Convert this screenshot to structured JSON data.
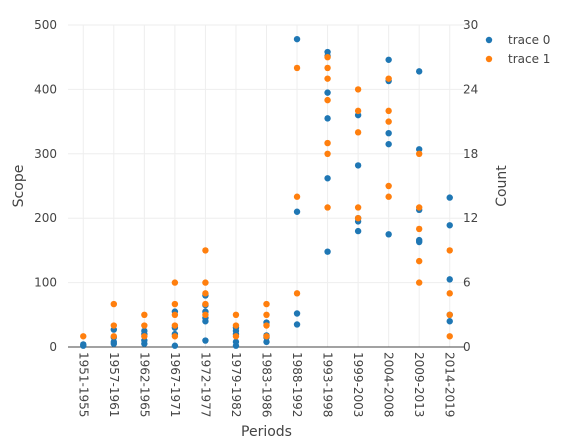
{
  "chart_data": {
    "type": "scatter",
    "title": "",
    "xlabel": "Periods",
    "ylabel": "Scope",
    "y2label": "Count",
    "categories": [
      "1951-1955",
      "1957-1961",
      "1962-1965",
      "1967-1971",
      "1972-1977",
      "1979-1982",
      "1983-1986",
      "1988-1992",
      "1993-1998",
      "1999-2003",
      "2004-2008",
      "2009-2013",
      "2014-2019"
    ],
    "ylim": [
      0,
      500
    ],
    "yticks": [
      0,
      100,
      200,
      300,
      400,
      500
    ],
    "y2lim": [
      0,
      30
    ],
    "y2ticks": [
      0,
      6,
      12,
      18,
      24,
      30
    ],
    "grid": true,
    "legend_position": "top-right",
    "series": [
      {
        "name": "trace 0",
        "axis": "left",
        "color": "#1f77b4",
        "points": [
          [
            "1951-1955",
            2
          ],
          [
            "1951-1955",
            4
          ],
          [
            "1957-1961",
            8
          ],
          [
            "1957-1961",
            15
          ],
          [
            "1957-1961",
            27
          ],
          [
            "1957-1961",
            5
          ],
          [
            "1962-1965",
            5
          ],
          [
            "1962-1965",
            10
          ],
          [
            "1962-1965",
            20
          ],
          [
            "1962-1965",
            25
          ],
          [
            "1967-1971",
            2
          ],
          [
            "1967-1971",
            20
          ],
          [
            "1967-1971",
            30
          ],
          [
            "1967-1971",
            55
          ],
          [
            "1972-1977",
            10
          ],
          [
            "1972-1977",
            40
          ],
          [
            "1972-1977",
            45
          ],
          [
            "1972-1977",
            55
          ],
          [
            "1972-1977",
            65
          ],
          [
            "1972-1977",
            80
          ],
          [
            "1979-1982",
            2
          ],
          [
            "1979-1982",
            8
          ],
          [
            "1979-1982",
            20
          ],
          [
            "1979-1982",
            25
          ],
          [
            "1979-1982",
            30
          ],
          [
            "1983-1986",
            8
          ],
          [
            "1983-1986",
            15
          ],
          [
            "1983-1986",
            18
          ],
          [
            "1983-1986",
            38
          ],
          [
            "1988-1992",
            35
          ],
          [
            "1988-1992",
            52
          ],
          [
            "1988-1992",
            210
          ],
          [
            "1988-1992",
            478
          ],
          [
            "1993-1998",
            148
          ],
          [
            "1993-1998",
            262
          ],
          [
            "1993-1998",
            355
          ],
          [
            "1993-1998",
            395
          ],
          [
            "1993-1998",
            452
          ],
          [
            "1993-1998",
            458
          ],
          [
            "1999-2003",
            180
          ],
          [
            "1999-2003",
            195
          ],
          [
            "1999-2003",
            200
          ],
          [
            "1999-2003",
            282
          ],
          [
            "1999-2003",
            360
          ],
          [
            "2004-2008",
            175
          ],
          [
            "2004-2008",
            315
          ],
          [
            "2004-2008",
            332
          ],
          [
            "2004-2008",
            413
          ],
          [
            "2004-2008",
            446
          ],
          [
            "2009-2013",
            163
          ],
          [
            "2009-2013",
            166
          ],
          [
            "2009-2013",
            213
          ],
          [
            "2009-2013",
            307
          ],
          [
            "2009-2013",
            428
          ],
          [
            "2014-2019",
            40
          ],
          [
            "2014-2019",
            50
          ],
          [
            "2014-2019",
            105
          ],
          [
            "2014-2019",
            189
          ],
          [
            "2014-2019",
            232
          ]
        ]
      },
      {
        "name": "trace 1",
        "axis": "right",
        "color": "#ff7f0e",
        "points": [
          [
            "1951-1955",
            1
          ],
          [
            "1957-1961",
            1
          ],
          [
            "1957-1961",
            2
          ],
          [
            "1957-1961",
            4
          ],
          [
            "1962-1965",
            1
          ],
          [
            "1962-1965",
            2
          ],
          [
            "1962-1965",
            3
          ],
          [
            "1967-1971",
            1
          ],
          [
            "1967-1971",
            2
          ],
          [
            "1967-1971",
            3
          ],
          [
            "1967-1971",
            4
          ],
          [
            "1967-1971",
            6
          ],
          [
            "1972-1977",
            3
          ],
          [
            "1972-1977",
            4
          ],
          [
            "1972-1977",
            5
          ],
          [
            "1972-1977",
            6
          ],
          [
            "1972-1977",
            9
          ],
          [
            "1979-1982",
            1
          ],
          [
            "1979-1982",
            2
          ],
          [
            "1979-1982",
            3
          ],
          [
            "1983-1986",
            1
          ],
          [
            "1983-1986",
            2
          ],
          [
            "1983-1986",
            3
          ],
          [
            "1983-1986",
            4
          ],
          [
            "1988-1992",
            5
          ],
          [
            "1988-1992",
            14
          ],
          [
            "1988-1992",
            26
          ],
          [
            "1993-1998",
            13
          ],
          [
            "1993-1998",
            18
          ],
          [
            "1993-1998",
            19
          ],
          [
            "1993-1998",
            23
          ],
          [
            "1993-1998",
            25
          ],
          [
            "1993-1998",
            26
          ],
          [
            "1993-1998",
            27
          ],
          [
            "1999-2003",
            12
          ],
          [
            "1999-2003",
            13
          ],
          [
            "1999-2003",
            20
          ],
          [
            "1999-2003",
            22
          ],
          [
            "1999-2003",
            24
          ],
          [
            "2004-2008",
            14
          ],
          [
            "2004-2008",
            15
          ],
          [
            "2004-2008",
            21
          ],
          [
            "2004-2008",
            22
          ],
          [
            "2004-2008",
            25
          ],
          [
            "2009-2013",
            6
          ],
          [
            "2009-2013",
            8
          ],
          [
            "2009-2013",
            11
          ],
          [
            "2009-2013",
            13
          ],
          [
            "2009-2013",
            18
          ],
          [
            "2014-2019",
            1
          ],
          [
            "2014-2019",
            3
          ],
          [
            "2014-2019",
            5
          ],
          [
            "2014-2019",
            9
          ]
        ]
      }
    ]
  }
}
